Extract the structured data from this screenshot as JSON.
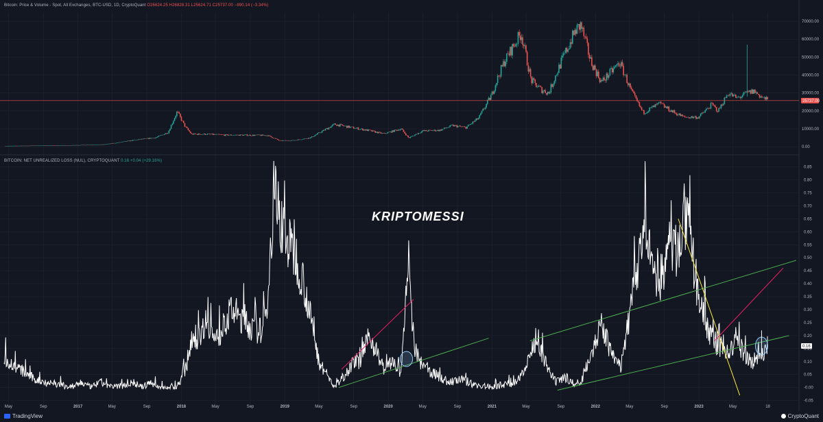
{
  "top_panel": {
    "legend_title": "Bitcoin: Price & Volume - Spot, All Exchanges, BTC-USD, 1D, CryptoQuant",
    "legend_ohlc": "O26624.25  H26828.31  L25624.71  C25737.00  −890.14 (−3.34%)"
  },
  "bottom_panel": {
    "legend_title": "BITCOIN: NET UNREALIZED LOSS (NUL), CRYPTOQUANT",
    "legend_value": "0.16  +0.04 (+29.16%)"
  },
  "watermark": "KRIPTOMESSI",
  "footer": {
    "left_brand": "TradingView",
    "right_brand": "CryptoQuant"
  },
  "colors": {
    "background": "#131722",
    "grid": "#242733",
    "up_candle": "#26a69a",
    "down_candle": "#ef5350",
    "price_line": "#ef5350",
    "nul_line": "#ffffff",
    "green_trend": "#4caf50",
    "red_trend": "#e91e63",
    "yellow_trend": "#ffeb3b",
    "circle": "#90caf9"
  },
  "chart_data": [
    {
      "type": "candlestick",
      "title": "Bitcoin: Price & Volume - Spot, All Exchanges, BTC-USD, 1D, CryptoQuant",
      "yticks": [
        0,
        10000,
        20000,
        30000,
        40000,
        50000,
        60000,
        70000
      ],
      "ytick_labels": [
        "0.00",
        "10000.00",
        "20000.00",
        "30000.00",
        "40000.00",
        "50000.00",
        "60000.00",
        "70000.00"
      ],
      "ylim": [
        -3000,
        75000
      ],
      "last_price": 25737.0,
      "last_price_label": "25737.00",
      "series": [
        {
          "x": [
            "2016-05-01",
            "2016-08-01",
            "2016-11-01",
            "2017-02-01",
            "2017-04-01",
            "2017-06-01",
            "2017-08-01",
            "2017-10-01",
            "2017-11-15",
            "2017-12-17",
            "2018-01-15",
            "2018-02-06",
            "2018-04-01",
            "2018-06-01",
            "2018-08-01",
            "2018-11-01",
            "2018-12-15",
            "2019-02-01",
            "2019-04-01",
            "2019-06-26",
            "2019-09-01",
            "2019-10-26",
            "2019-12-15",
            "2020-02-15",
            "2020-03-13",
            "2020-05-01",
            "2020-07-01",
            "2020-08-15",
            "2020-10-01",
            "2020-11-15",
            "2020-12-31",
            "2021-01-15",
            "2021-02-15",
            "2021-04-14",
            "2021-05-19",
            "2021-06-22",
            "2021-07-20",
            "2021-09-01",
            "2021-10-20",
            "2021-11-10",
            "2021-12-15",
            "2022-01-22",
            "2022-03-28",
            "2022-05-10",
            "2022-06-18",
            "2022-08-15",
            "2022-10-01",
            "2022-11-09",
            "2022-12-31",
            "2023-02-15",
            "2023-03-10",
            "2023-04-14",
            "2023-05-15",
            "2023-06-21",
            "2023-07-14",
            "2023-08-17",
            "2023-08-31"
          ],
          "y": [
            450,
            600,
            700,
            1000,
            1200,
            2500,
            4000,
            5000,
            8000,
            19500,
            11000,
            7000,
            7000,
            6500,
            6500,
            6300,
            3300,
            3500,
            5000,
            12500,
            10500,
            9000,
            7200,
            10000,
            4900,
            8800,
            9200,
            11800,
            10700,
            16000,
            29000,
            36000,
            48000,
            63500,
            37000,
            32000,
            30000,
            47000,
            64000,
            68000,
            48000,
            36000,
            47000,
            30000,
            19000,
            24000,
            19500,
            16500,
            16500,
            23500,
            20000,
            30000,
            27000,
            30000,
            31000,
            27000,
            26000
          ]
        }
      ]
    },
    {
      "type": "line",
      "title": "BITCOIN: NET UNREALIZED LOSS (NUL), CRYPTOQUANT",
      "yticks": [
        -0.05,
        0,
        0.05,
        0.1,
        0.15,
        0.2,
        0.25,
        0.3,
        0.35,
        0.4,
        0.45,
        0.5,
        0.55,
        0.6,
        0.65,
        0.7,
        0.75,
        0.8,
        0.85
      ],
      "ytick_labels": [
        "-0.05",
        "-0.00",
        "0.05",
        "0.10",
        "0.15",
        "0.20",
        "0.25",
        "0.30",
        "0.35",
        "0.40",
        "0.45",
        "0.50",
        "0.55",
        "0.60",
        "0.65",
        "0.70",
        "0.75",
        "0.80",
        "0.85"
      ],
      "ylim": [
        -0.08,
        0.87
      ],
      "last_value": 0.16,
      "last_value_label": "0.16",
      "xtick_labels": [
        "May",
        "Sep",
        "2017",
        "May",
        "Sep",
        "2018",
        "May",
        "Sep",
        "2019",
        "May",
        "Sep",
        "2020",
        "May",
        "Sep",
        "2021",
        "May",
        "Sep",
        "2022",
        "May",
        "Sep",
        "2023",
        "May",
        "18"
      ],
      "series": [
        {
          "x": [
            "2016-04-15",
            "2016-05-10",
            "2016-06-25",
            "2016-08-02",
            "2016-09-15",
            "2016-11-01",
            "2016-12-15",
            "2017-01-12",
            "2017-02-15",
            "2017-03-25",
            "2017-05-01",
            "2017-06-15",
            "2017-07-16",
            "2017-08-15",
            "2017-09-15",
            "2017-10-15",
            "2017-11-15",
            "2017-12-15",
            "2018-01-20",
            "2018-02-06",
            "2018-03-01",
            "2018-04-01",
            "2018-05-01",
            "2018-06-28",
            "2018-08-14",
            "2018-09-15",
            "2018-10-15",
            "2018-11-01",
            "2018-11-25",
            "2018-12-15",
            "2019-01-15",
            "2019-02-10",
            "2019-03-10",
            "2019-04-10",
            "2019-05-01",
            "2019-06-26",
            "2019-08-01",
            "2019-09-01",
            "2019-09-25",
            "2019-10-26",
            "2019-12-17",
            "2020-01-20",
            "2020-02-15",
            "2020-03-13",
            "2020-04-01",
            "2020-05-01",
            "2020-06-15",
            "2020-08-01",
            "2020-09-15",
            "2020-11-01",
            "2020-12-31",
            "2021-02-01",
            "2021-04-01",
            "2021-05-23",
            "2021-06-22",
            "2021-07-20",
            "2021-08-15",
            "2021-09-21",
            "2021-10-20",
            "2021-11-10",
            "2021-12-04",
            "2022-01-24",
            "2022-03-01",
            "2022-04-01",
            "2022-05-12",
            "2022-06-18",
            "2022-07-15",
            "2022-08-15",
            "2022-09-20",
            "2022-10-15",
            "2022-11-09",
            "2022-11-25",
            "2022-12-31",
            "2023-01-15",
            "2023-02-01",
            "2023-02-20",
            "2023-03-10",
            "2023-03-20",
            "2023-04-14",
            "2023-05-15",
            "2023-06-15",
            "2023-07-10",
            "2023-08-01",
            "2023-08-17",
            "2023-08-31"
          ],
          "y": [
            0.12,
            0.09,
            0.06,
            0.03,
            0.02,
            0.01,
            0.0,
            0.02,
            0.0,
            0.02,
            0.0,
            0.01,
            0.02,
            0.0,
            0.02,
            0.0,
            0.0,
            0.0,
            0.08,
            0.2,
            0.18,
            0.27,
            0.17,
            0.3,
            0.25,
            0.22,
            0.22,
            0.35,
            0.76,
            0.65,
            0.55,
            0.5,
            0.4,
            0.22,
            0.1,
            0.0,
            0.05,
            0.1,
            0.1,
            0.2,
            0.07,
            0.1,
            0.05,
            0.49,
            0.15,
            0.08,
            0.05,
            0.02,
            0.03,
            0.01,
            0.0,
            0.01,
            0.02,
            0.15,
            0.14,
            0.06,
            0.02,
            0.04,
            0.01,
            0.01,
            0.1,
            0.24,
            0.12,
            0.08,
            0.35,
            0.6,
            0.5,
            0.4,
            0.55,
            0.52,
            0.66,
            0.6,
            0.35,
            0.3,
            0.22,
            0.2,
            0.15,
            0.15,
            0.13,
            0.18,
            0.12,
            0.1,
            0.12,
            0.14,
            0.16
          ]
        }
      ]
    }
  ]
}
